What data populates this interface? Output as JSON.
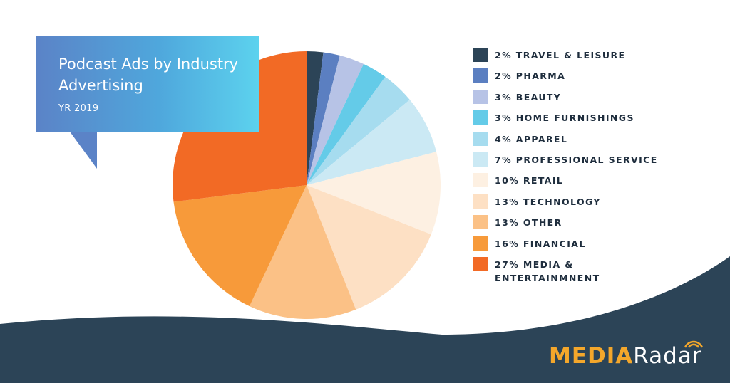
{
  "header": {
    "title": "Podcast Ads by Industry Advertising",
    "subtitle": "YR 2019"
  },
  "brand": {
    "name_part1": "MEDIA",
    "name_part2": "Radar",
    "accent_color": "#f4a72b",
    "background_band_color": "#2c4457"
  },
  "chart_data": {
    "type": "pie",
    "title": "Podcast Ads by Industry Advertising",
    "subtitle": "YR 2019",
    "legend_position": "right",
    "slices": [
      {
        "label": "TRAVEL & LEISURE",
        "value": 2,
        "color": "#2c4457"
      },
      {
        "label": "PHARMA",
        "value": 2,
        "color": "#5b7fc1"
      },
      {
        "label": "BEAUTY",
        "value": 3,
        "color": "#b7c3e6"
      },
      {
        "label": "HOME FURNISHINGS",
        "value": 3,
        "color": "#64cbe8"
      },
      {
        "label": "APPAREL",
        "value": 4,
        "color": "#a6dcef"
      },
      {
        "label": "PROFESSIONAL SERVICE",
        "value": 7,
        "color": "#cbe9f4"
      },
      {
        "label": "RETAIL",
        "value": 10,
        "color": "#fdf0e2"
      },
      {
        "label": "TECHNOLOGY",
        "value": 13,
        "color": "#fde0c4"
      },
      {
        "label": "OTHER",
        "value": 13,
        "color": "#fbc186"
      },
      {
        "label": "FINANCIAL",
        "value": 16,
        "color": "#f79a3a"
      },
      {
        "label": "MEDIA &\nENTERTAINMNENT",
        "value": 27,
        "color": "#f26a25"
      }
    ]
  }
}
